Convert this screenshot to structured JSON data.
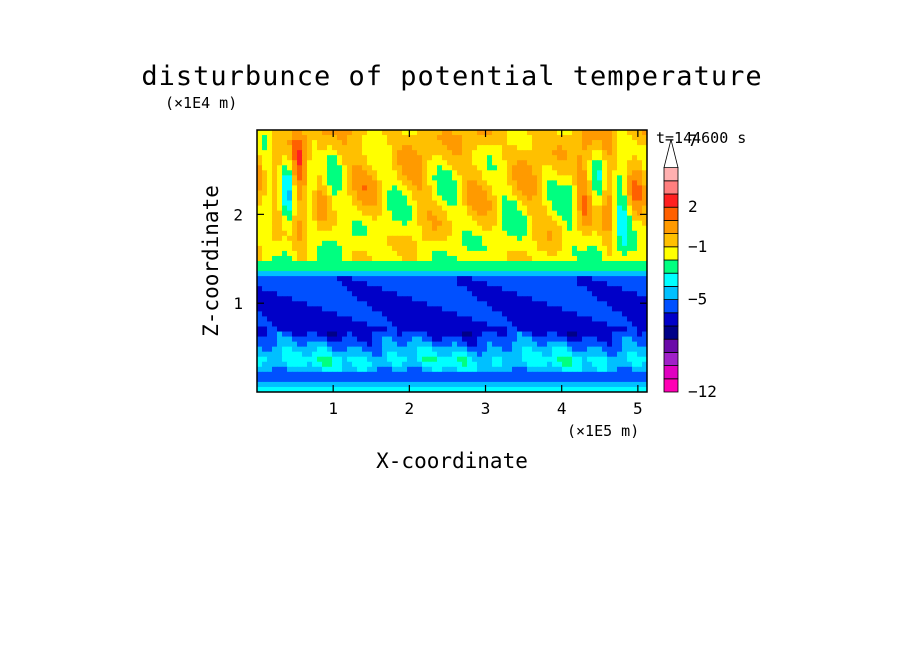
{
  "chart_data": {
    "type": "heatmap",
    "title": "disturbunce of potential temperature",
    "time_label": "t=144600 s",
    "xlabel": "X-coordinate",
    "ylabel": "Z-coordinate",
    "x_scale_label": "(×1E5 m)",
    "y_scale_label": "(×1E4 m)",
    "xlim": [
      0,
      5.12
    ],
    "ylim": [
      0,
      2.95
    ],
    "x_ticks": [
      "1",
      "2",
      "3",
      "4",
      "5"
    ],
    "x_tick_values": [
      1,
      2,
      3,
      4,
      5
    ],
    "y_ticks": [
      "1",
      "2"
    ],
    "y_tick_values": [
      1,
      2
    ],
    "colorbar": {
      "label_values": [
        -12,
        -5,
        -1,
        2,
        7
      ],
      "labels": [
        "−12",
        "−5",
        "−1",
        "2",
        "7"
      ],
      "colors": [
        "#ff00b4",
        "#e000c0",
        "#a020c8",
        "#6a0aa8",
        "#000088",
        "#0000c8",
        "#0050ff",
        "#00c0ff",
        "#00ffff",
        "#00ff80",
        "#ffff00",
        "#ffc000",
        "#ff9a00",
        "#ff6000",
        "#ff2020",
        "#ff7f7f",
        "#ffb0b0",
        "#ffffff"
      ],
      "extend_max": true
    },
    "vertical_profile": [
      {
        "z": 0.0,
        "level": 9
      },
      {
        "z": 0.15,
        "level": 6
      },
      {
        "z": 0.35,
        "level": 8
      },
      {
        "z": 0.7,
        "level": 5
      },
      {
        "z": 1.3,
        "level": 6
      },
      {
        "z": 1.4,
        "level": 9
      },
      {
        "z": 1.5,
        "level": 10
      },
      {
        "z": 2.95,
        "level": 11
      }
    ]
  }
}
